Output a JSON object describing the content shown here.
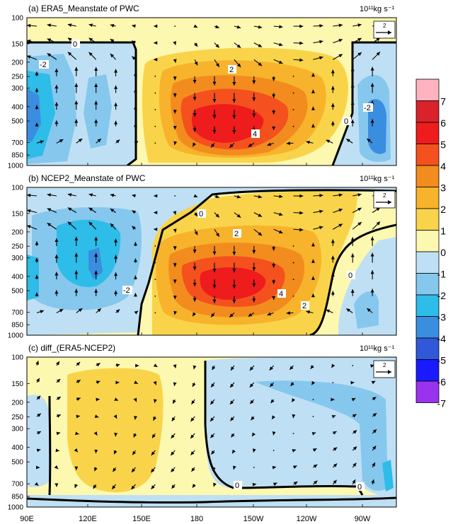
{
  "units_text": "10¹¹kg s⁻¹",
  "ref_vector_label": "2",
  "levels": [
    {
      "value": 7,
      "color": "#ffb3c1"
    },
    {
      "value": 6,
      "color": "#d9232a"
    },
    {
      "value": 5,
      "color": "#ee1c1c"
    },
    {
      "value": 4,
      "color": "#f4511e"
    },
    {
      "value": 3,
      "color": "#f28c1e"
    },
    {
      "value": 2,
      "color": "#f7b32b"
    },
    {
      "value": 1,
      "color": "#f9d44a"
    },
    {
      "value": 0,
      "color": "#fdf8b0"
    },
    {
      "value": -1,
      "color": "#bfe0f4"
    },
    {
      "value": -2,
      "color": "#86c7ee"
    },
    {
      "value": -3,
      "color": "#2ebce8"
    },
    {
      "value": -4,
      "color": "#3a8ee0"
    },
    {
      "value": -5,
      "color": "#3158d8"
    },
    {
      "value": -6,
      "color": "#1a1aff"
    },
    {
      "value": -7,
      "color": "#9a33ee"
    }
  ],
  "colorbar_labels": [
    "7",
    "6",
    "5",
    "4",
    "3",
    "2",
    "1",
    "0",
    "-1",
    "-2",
    "-3",
    "-4",
    "-5",
    "-6",
    "-7"
  ],
  "chart_data": [
    {
      "type": "heatmap",
      "title": "(a) ERA5_Meanstate of PWC",
      "xlabel": "",
      "ylabel": "",
      "x_ticks": [
        "90E",
        "120E",
        "150E",
        "180",
        "150W",
        "120W",
        "90W"
      ],
      "x_range": [
        90,
        282
      ],
      "y_ticks": [
        100,
        150,
        200,
        250,
        300,
        400,
        500,
        700,
        850,
        1000
      ],
      "y_range": [
        100,
        1000
      ],
      "y_scale": "pressure-log",
      "contour_labels": [
        "0",
        "2",
        "4",
        "-2",
        "0",
        "-2"
      ],
      "cells": [
        {
          "lon": 94,
          "p": 450,
          "v": -3.5
        },
        {
          "lon": 100,
          "p": 450,
          "v": -2.5
        },
        {
          "lon": 110,
          "p": 450,
          "v": -1.5
        },
        {
          "lon": 128,
          "p": 450,
          "v": -2.5
        },
        {
          "lon": 140,
          "p": 450,
          "v": -1.5
        },
        {
          "lon": 148,
          "p": 450,
          "v": -1.0
        },
        {
          "lon": 190,
          "p": 500,
          "v": 4.5
        },
        {
          "lon": 170,
          "p": 400,
          "v": 2.5
        },
        {
          "lon": 215,
          "p": 450,
          "v": 2.0
        },
        {
          "lon": 260,
          "p": 500,
          "v": -2.5
        }
      ]
    },
    {
      "type": "heatmap",
      "title": "(b) NCEP2_Meanstate of PWC",
      "xlabel": "",
      "ylabel": "",
      "x_ticks": [
        "90E",
        "120E",
        "150E",
        "180",
        "150W",
        "120W",
        "90W"
      ],
      "x_range": [
        90,
        282
      ],
      "y_ticks": [
        100,
        150,
        200,
        250,
        300,
        400,
        500,
        700,
        850,
        1000
      ],
      "y_range": [
        100,
        1000
      ],
      "y_scale": "pressure-log",
      "contour_labels": [
        "0",
        "2",
        "4",
        "2",
        "-2",
        "0"
      ],
      "cells": [
        {
          "lon": 95,
          "p": 450,
          "v": -2.5
        },
        {
          "lon": 122,
          "p": 400,
          "v": -2.5
        },
        {
          "lon": 140,
          "p": 450,
          "v": -1.5
        },
        {
          "lon": 195,
          "p": 480,
          "v": 4.5
        },
        {
          "lon": 180,
          "p": 350,
          "v": 3.0
        },
        {
          "lon": 215,
          "p": 450,
          "v": 2.0
        },
        {
          "lon": 262,
          "p": 650,
          "v": -1.5
        }
      ]
    },
    {
      "type": "heatmap",
      "title": "(c) diff_(ERA5-NCEP2)",
      "xlabel": "",
      "ylabel": "",
      "x_ticks": [
        "90E",
        "120E",
        "150E",
        "180",
        "150W",
        "120W",
        "90W"
      ],
      "x_range": [
        90,
        282
      ],
      "y_ticks": [
        100,
        150,
        200,
        250,
        300,
        400,
        500,
        700,
        850,
        1000
      ],
      "y_range": [
        100,
        1000
      ],
      "y_scale": "pressure-log",
      "contour_labels": [
        "0",
        "0"
      ],
      "cells": [
        {
          "lon": 125,
          "p": 300,
          "v": 1.5
        },
        {
          "lon": 95,
          "p": 500,
          "v": -0.5
        },
        {
          "lon": 220,
          "p": 400,
          "v": -0.5
        },
        {
          "lon": 265,
          "p": 300,
          "v": -1.2
        },
        {
          "lon": 278,
          "p": 700,
          "v": -2.2
        }
      ]
    }
  ]
}
